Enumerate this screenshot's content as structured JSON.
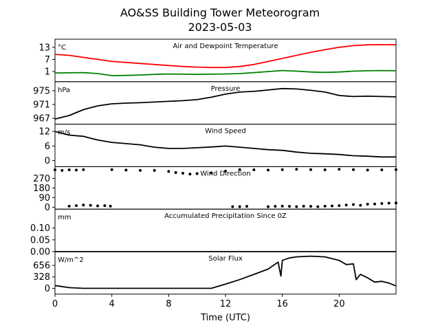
{
  "figure": {
    "title_line1": "AO&SS Building Tower Meteorogram",
    "title_line2": "2023-05-03",
    "xlabel": "Time (UTC)",
    "x_tick_labels": [
      "0",
      "4",
      "8",
      "12",
      "16",
      "20"
    ]
  },
  "chart_data": [
    {
      "type": "line",
      "title": "Air and Dewpoint Temperature",
      "unit": "°C",
      "x_range": [
        0,
        24
      ],
      "ylim": [
        -4,
        17
      ],
      "y_ticks": [
        1,
        7,
        13
      ],
      "y_tick_labels": [
        "1",
        "7",
        "13"
      ],
      "series": [
        {
          "color": "#ff0000",
          "x": [
            0,
            1,
            2,
            3,
            4,
            5,
            6,
            7,
            8,
            9,
            10,
            11,
            12,
            13,
            14,
            15,
            16,
            17,
            18,
            19,
            20,
            21,
            22,
            23,
            24
          ],
          "y": [
            9.5,
            9,
            8,
            7,
            6,
            5.5,
            5,
            4.5,
            4,
            3.5,
            3.2,
            3,
            3,
            3.5,
            4.5,
            6,
            7.5,
            9,
            10.5,
            11.8,
            13,
            13.8,
            14.2,
            14.3,
            14.2
          ]
        },
        {
          "color": "#008000",
          "x": [
            0,
            1,
            2,
            3,
            4,
            5,
            6,
            7,
            8,
            9,
            10,
            11,
            12,
            13,
            14,
            15,
            16,
            17,
            18,
            19,
            20,
            21,
            22,
            23,
            24
          ],
          "y": [
            0.3,
            0.4,
            0.5,
            0,
            -1,
            -0.9,
            -0.7,
            -0.4,
            -0.2,
            -0.3,
            -0.4,
            -0.3,
            -0.2,
            0,
            0.5,
            1,
            1.5,
            1.2,
            0.8,
            0.6,
            0.8,
            1.2,
            1.4,
            1.5,
            1.4
          ]
        }
      ]
    },
    {
      "type": "line",
      "title": "Pressure",
      "unit": "hPa",
      "x_range": [
        0,
        24
      ],
      "ylim": [
        965.3,
        977.6
      ],
      "y_ticks": [
        967,
        971,
        975
      ],
      "y_tick_labels": [
        "967",
        "971",
        "975"
      ],
      "series": [
        {
          "color": "#000000",
          "x": [
            0,
            1,
            2,
            3,
            4,
            5,
            6,
            7,
            8,
            9,
            10,
            11,
            12,
            13,
            14,
            15,
            16,
            17,
            18,
            19,
            20,
            21,
            22,
            23,
            24
          ],
          "y": [
            966.8,
            967.8,
            969.5,
            970.6,
            971.2,
            971.4,
            971.5,
            971.7,
            971.9,
            972.1,
            972.4,
            973.1,
            974.0,
            974.6,
            974.8,
            975.2,
            975.6,
            975.5,
            975.1,
            974.6,
            973.6,
            973.3,
            973.4,
            973.3,
            973.2
          ]
        }
      ]
    },
    {
      "type": "line",
      "title": "Wind Speed",
      "unit": "m/s",
      "x_range": [
        0,
        24
      ],
      "ylim": [
        -2.5,
        15
      ],
      "y_ticks": [
        0,
        6,
        12
      ],
      "y_tick_labels": [
        "0",
        "6",
        "12"
      ],
      "series": [
        {
          "color": "#000000",
          "x": [
            0,
            1,
            2,
            3,
            4,
            5,
            6,
            7,
            8,
            9,
            10,
            11,
            12,
            13,
            14,
            15,
            16,
            17,
            18,
            19,
            20,
            21,
            22,
            23,
            24
          ],
          "y": [
            12,
            10.5,
            10,
            8.5,
            7.5,
            7,
            6.5,
            5.5,
            5,
            5,
            5.3,
            5.6,
            6,
            5.5,
            5,
            4.5,
            4.2,
            3.5,
            3,
            2.8,
            2.5,
            2,
            1.8,
            1.5,
            1.5
          ]
        }
      ]
    },
    {
      "type": "scatter",
      "title": "Wind Direction",
      "unit": "",
      "x_range": [
        0,
        24
      ],
      "ylim": [
        -18,
        380
      ],
      "y_ticks": [
        0,
        90,
        180,
        270
      ],
      "y_tick_labels": [
        "0",
        "90",
        "180",
        "270"
      ],
      "series": [
        {
          "color": "#000000",
          "x": [
            0,
            0.5,
            1,
            1.5,
            2,
            4,
            5,
            6,
            7,
            8,
            8.5,
            9,
            9.5,
            10,
            11,
            12,
            13,
            14,
            15,
            16,
            17,
            18,
            19,
            20,
            21,
            22,
            23,
            24
          ],
          "y": [
            350,
            345,
            350,
            348,
            352,
            352,
            348,
            345,
            345,
            335,
            325,
            318,
            310,
            315,
            322,
            338,
            352,
            350,
            348,
            352,
            355,
            352,
            350,
            355,
            352,
            348,
            350,
            352
          ]
        },
        {
          "color": "#000000",
          "x": [
            1,
            1.5,
            2,
            2.5,
            3,
            3.5,
            3.9,
            12.5,
            13,
            13.5,
            15,
            15.5,
            16,
            16.5,
            17,
            17.5,
            18,
            18.5,
            19,
            19.5,
            20,
            20.5,
            21,
            21.5,
            22,
            22.5,
            23,
            23.5,
            24
          ],
          "y": [
            10,
            15,
            20,
            18,
            12,
            15,
            10,
            5,
            5,
            8,
            5,
            8,
            10,
            8,
            5,
            10,
            8,
            5,
            10,
            12,
            15,
            20,
            25,
            18,
            28,
            30,
            35,
            38,
            40
          ]
        }
      ]
    },
    {
      "type": "line",
      "title": "Accumulated Precipitation Since 0Z",
      "unit": "mm",
      "x_range": [
        0,
        24
      ],
      "ylim": [
        0,
        0.18
      ],
      "y_ticks": [
        0,
        0.05,
        0.1
      ],
      "y_tick_labels": [
        "0.00",
        "0.05",
        "0.10"
      ],
      "series": [
        {
          "color": "#000000",
          "x": [
            0,
            24
          ],
          "y": [
            0,
            0
          ]
        }
      ]
    },
    {
      "type": "line",
      "title": "Solar Flux",
      "unit": "W/m^2",
      "x_range": [
        0,
        24
      ],
      "ylim": [
        -165,
        1050
      ],
      "y_ticks": [
        0,
        328,
        656
      ],
      "y_tick_labels": [
        "0",
        "328",
        "656"
      ],
      "series": [
        {
          "color": "#000000",
          "x": [
            0,
            1,
            2,
            4,
            6,
            8,
            10,
            11,
            12,
            13,
            14,
            15,
            15.7,
            15.9,
            16,
            16.5,
            17,
            18,
            19,
            20,
            20.5,
            21,
            21.2,
            21.5,
            22,
            22.5,
            23,
            23.5,
            24
          ],
          "y": [
            80,
            20,
            0,
            0,
            0,
            0,
            0,
            0,
            120,
            250,
            400,
            550,
            750,
            350,
            800,
            870,
            900,
            920,
            900,
            800,
            680,
            700,
            250,
            400,
            300,
            180,
            200,
            150,
            70
          ]
        }
      ]
    }
  ]
}
